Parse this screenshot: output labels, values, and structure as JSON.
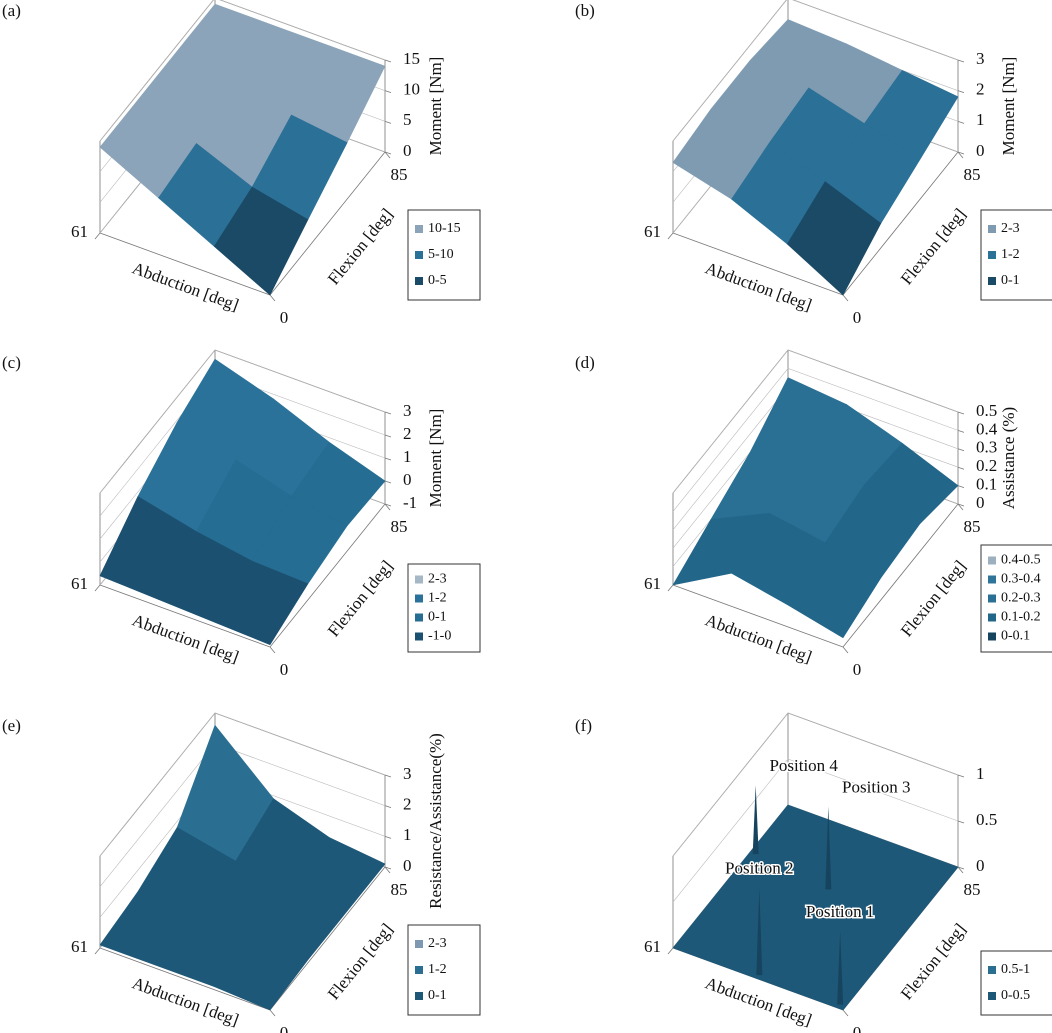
{
  "chart_data": [
    {
      "type": "surface",
      "panel": "(a)",
      "zlabel": "Moment [Nm]",
      "xlabel": "Abduction [deg]",
      "ylabel": "Flexion [deg]",
      "xlim": [
        0,
        61
      ],
      "xticks": [
        61
      ],
      "ylim": [
        0,
        85
      ],
      "yticks": [
        0,
        85
      ],
      "zlim": [
        0,
        15
      ],
      "zticks": [
        0,
        5,
        10,
        15
      ],
      "x": [
        0,
        20,
        40,
        61
      ],
      "y": [
        0,
        28,
        57,
        85
      ],
      "z": [
        [
          0,
          4.6,
          9.2,
          14
        ],
        [
          4.6,
          6.6,
          10.4,
          14
        ],
        [
          9.2,
          10.4,
          13,
          14
        ],
        [
          14,
          14,
          14,
          14
        ]
      ],
      "legend": [
        {
          "label": "10-15",
          "range": [
            10,
            15
          ],
          "color": "#8ba4b9"
        },
        {
          "label": "5-10",
          "range": [
            5,
            10
          ],
          "color": "#2b7096"
        },
        {
          "label": "0-5",
          "range": [
            0,
            5
          ],
          "color": "#1b4a66"
        }
      ]
    },
    {
      "type": "surface",
      "panel": "(b)",
      "zlabel": "Moment [Nm]",
      "xlabel": "Abduction [deg]",
      "ylabel": "Flexion [deg]",
      "xlim": [
        0,
        61
      ],
      "xticks": [
        61
      ],
      "ylim": [
        0,
        85
      ],
      "yticks": [
        0,
        85
      ],
      "zlim": [
        0,
        3
      ],
      "zticks": [
        0,
        1,
        2,
        3
      ],
      "x": [
        0,
        20,
        40,
        61
      ],
      "y": [
        0,
        28,
        57,
        85
      ],
      "z": [
        [
          0,
          1,
          1.8,
          2.3
        ],
        [
          0.8,
          1.5,
          2.1,
          2.5
        ],
        [
          1.3,
          1.8,
          2.3,
          2.5
        ],
        [
          1.8,
          2,
          2.2,
          2.3
        ]
      ],
      "legend": [
        {
          "label": "2-3",
          "range": [
            2,
            3
          ],
          "color": "#7f9bb2"
        },
        {
          "label": "1-2",
          "range": [
            1,
            2
          ],
          "color": "#2b7096"
        },
        {
          "label": "0-1",
          "range": [
            0,
            1
          ],
          "color": "#1b4a66"
        }
      ]
    },
    {
      "type": "surface",
      "panel": "(c)",
      "zlabel": "Moment [Nm]",
      "xlabel": "Abduction [deg]",
      "ylabel": "Flexion [deg]",
      "xlim": [
        0,
        61
      ],
      "xticks": [
        61
      ],
      "ylim": [
        0,
        85
      ],
      "yticks": [
        0,
        85
      ],
      "zlim": [
        -1,
        3
      ],
      "zticks": [
        -1,
        0,
        1,
        2,
        3
      ],
      "x": [
        0,
        20,
        40,
        61
      ],
      "y": [
        0,
        28,
        57,
        85
      ],
      "z": [
        [
          -0.9,
          -0.8,
          -0.7,
          -0.6
        ],
        [
          -0.3,
          -0.2,
          0.2,
          0.8
        ],
        [
          0.1,
          0.5,
          1.2,
          1.9
        ],
        [
          0,
          0.8,
          1.8,
          2.6
        ]
      ],
      "legend": [
        {
          "label": "2-3",
          "range": [
            2,
            3
          ],
          "color": "#a6b7c6"
        },
        {
          "label": "1-2",
          "range": [
            1,
            2
          ],
          "color": "#2a7299"
        },
        {
          "label": "0-1",
          "range": [
            0,
            1
          ],
          "color": "#256d92"
        },
        {
          "label": "-1-0",
          "range": [
            -1,
            0
          ],
          "color": "#1c5070"
        }
      ]
    },
    {
      "type": "surface",
      "panel": "(d)",
      "zlabel": "Assistance (%)",
      "xlabel": "Abduction [deg]",
      "ylabel": "Flexion [deg]",
      "xlim": [
        0,
        61
      ],
      "xticks": [
        61
      ],
      "ylim": [
        0,
        85
      ],
      "yticks": [
        0,
        85
      ],
      "zlim": [
        0,
        0.5
      ],
      "zticks": [
        0,
        0.1,
        0.2,
        0.3,
        0.4,
        0.5
      ],
      "x": [
        0,
        20,
        40,
        61
      ],
      "y": [
        0,
        28,
        57,
        85
      ],
      "z": [
        [
          0.05,
          0.12,
          0.18,
          0
        ],
        [
          0.12,
          0.2,
          0.25,
          0.1
        ],
        [
          0.15,
          0.25,
          0.3,
          0.2
        ],
        [
          0.1,
          0.22,
          0.32,
          0.35
        ]
      ],
      "legend": [
        {
          "label": "0.4-0.5",
          "range": [
            0.4,
            0.5
          ],
          "color": "#9db0c0"
        },
        {
          "label": "0.3-0.4",
          "range": [
            0.3,
            0.4
          ],
          "color": "#2f7499"
        },
        {
          "label": "0.2-0.3",
          "range": [
            0.2,
            0.3
          ],
          "color": "#2a6f94"
        },
        {
          "label": "0.1-0.2",
          "range": [
            0.1,
            0.2
          ],
          "color": "#22668a"
        },
        {
          "label": "0-0.1",
          "range": [
            0,
            0.1
          ],
          "color": "#16445e"
        }
      ]
    },
    {
      "type": "surface",
      "panel": "(e)",
      "zlabel": "Resistance/Assistance(%)",
      "xlabel": "Abduction [deg]",
      "ylabel": "Flexion [deg]",
      "xlim": [
        0,
        61
      ],
      "xticks": [
        61
      ],
      "ylim": [
        0,
        85
      ],
      "yticks": [
        0,
        85
      ],
      "zlim": [
        0,
        3
      ],
      "zticks": [
        0,
        1,
        2,
        3
      ],
      "x": [
        0,
        20,
        40,
        61
      ],
      "y": [
        0,
        28,
        57,
        85
      ],
      "z": [
        [
          0,
          0.1,
          0.1,
          0.1
        ],
        [
          0.1,
          0.1,
          0.2,
          0.3
        ],
        [
          0.1,
          0.2,
          0.4,
          0.8
        ],
        [
          0.1,
          0.3,
          0.9,
          2.6
        ]
      ],
      "legend": [
        {
          "label": "2-3",
          "range": [
            2,
            3
          ],
          "color": "#7d98b0"
        },
        {
          "label": "1-2",
          "range": [
            1,
            2
          ],
          "color": "#2a6f91"
        },
        {
          "label": "0-1",
          "range": [
            0,
            1
          ],
          "color": "#1e5878"
        }
      ]
    },
    {
      "type": "surface",
      "panel": "(f)",
      "xlabel": "Abduction [deg]",
      "ylabel": "Flexion [deg]",
      "xlim": [
        0,
        61
      ],
      "xticks": [
        61
      ],
      "ylim": [
        0,
        85
      ],
      "yticks": [
        0,
        85
      ],
      "zlim": [
        0,
        1
      ],
      "zticks": [
        0,
        0.5,
        1
      ],
      "x": [
        0,
        20,
        40,
        61
      ],
      "y": [
        0,
        28,
        57,
        85
      ],
      "z": [
        [
          0,
          0,
          0,
          0
        ],
        [
          0,
          0,
          0,
          0
        ],
        [
          0,
          0,
          0,
          0
        ],
        [
          0,
          0,
          0,
          0
        ]
      ],
      "peaks": [
        {
          "label": "Position 1",
          "x": 2,
          "y": 2,
          "z": 0.8
        },
        {
          "label": "Position 2",
          "x": 31,
          "y": 2,
          "z": 0.95
        },
        {
          "label": "Position 3",
          "x": 31,
          "y": 53,
          "z": 0.9
        },
        {
          "label": "Position 4",
          "x": 59,
          "y": 57,
          "z": 0.75
        }
      ],
      "legend": [
        {
          "label": "0.5-1",
          "range": [
            0.5,
            1
          ],
          "color": "#2a6f91"
        },
        {
          "label": "0-0.5",
          "range": [
            0,
            0.5
          ],
          "color": "#1e5878"
        }
      ]
    }
  ]
}
